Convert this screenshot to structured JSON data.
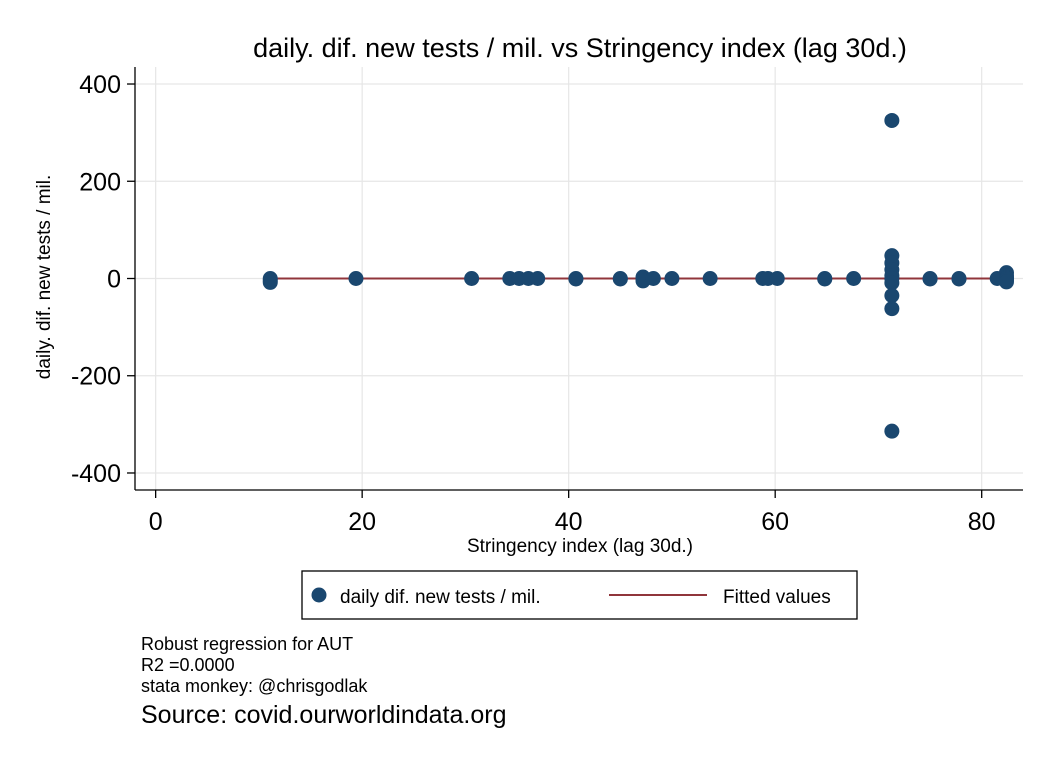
{
  "chart_data": {
    "type": "scatter",
    "title": "daily. dif. new tests / mil. vs Stringency index (lag 30d.)",
    "xlabel": "Stringency index (lag 30d.)",
    "ylabel": "daily. dif. new tests / mil.",
    "xlim": [
      -2,
      84
    ],
    "ylim": [
      -435,
      435
    ],
    "xticks": [
      0,
      20,
      40,
      60,
      80
    ],
    "yticks": [
      400,
      200,
      0,
      -200,
      -400
    ],
    "grid": true,
    "legend_position": "bottom",
    "colors": {
      "points": "#1a476f",
      "fit": "#90353b",
      "grid": "#e6e6e6"
    },
    "series": [
      {
        "name": "daily dif. new tests / mil.",
        "kind": "scatter",
        "points": [
          [
            11.1,
            0
          ],
          [
            11.1,
            -4
          ],
          [
            11.1,
            -8
          ],
          [
            19.4,
            0
          ],
          [
            30.6,
            0
          ],
          [
            34.3,
            0
          ],
          [
            35.2,
            0
          ],
          [
            36.1,
            0
          ],
          [
            37.0,
            0
          ],
          [
            40.7,
            0
          ],
          [
            40.7,
            -1
          ],
          [
            45.0,
            0
          ],
          [
            45.0,
            -1
          ],
          [
            47.2,
            0
          ],
          [
            47.2,
            3
          ],
          [
            47.2,
            -5
          ],
          [
            48.2,
            0
          ],
          [
            50.0,
            0
          ],
          [
            53.7,
            0
          ],
          [
            58.8,
            0
          ],
          [
            59.3,
            0
          ],
          [
            60.2,
            0
          ],
          [
            64.8,
            0
          ],
          [
            64.8,
            -1
          ],
          [
            67.6,
            0
          ],
          [
            71.3,
            325
          ],
          [
            71.3,
            47
          ],
          [
            71.3,
            32
          ],
          [
            71.3,
            18
          ],
          [
            71.3,
            6
          ],
          [
            71.3,
            0
          ],
          [
            71.3,
            -9
          ],
          [
            71.3,
            -35
          ],
          [
            71.3,
            -62
          ],
          [
            71.3,
            -314
          ],
          [
            75.0,
            0
          ],
          [
            75.0,
            -1
          ],
          [
            77.8,
            0
          ],
          [
            77.8,
            -1
          ],
          [
            81.5,
            0
          ],
          [
            82.4,
            12
          ],
          [
            82.4,
            6
          ],
          [
            82.4,
            2
          ],
          [
            82.4,
            0
          ],
          [
            82.4,
            -3
          ],
          [
            82.4,
            -7
          ]
        ]
      },
      {
        "name": "Fitted values",
        "kind": "line",
        "x": [
          11.1,
          82.4
        ],
        "y": [
          0,
          0
        ]
      }
    ]
  },
  "notes": {
    "line1": "Robust regression for AUT",
    "line2": "R2 =0.0000",
    "line3": "stata monkey: @chrisgodlak",
    "source": "Source: covid.ourworldindata.org"
  }
}
